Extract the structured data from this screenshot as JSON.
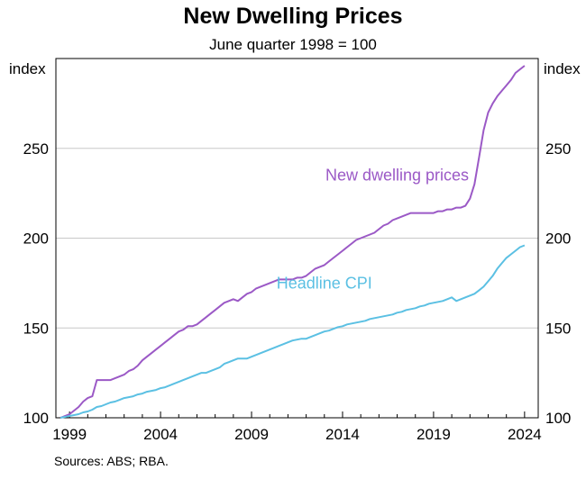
{
  "chart_data": {
    "type": "line",
    "title": "New Dwelling Prices",
    "subtitle": "June quarter 1998 = 100",
    "ylabel_left": "index",
    "ylabel_right": "index",
    "ylim": [
      100,
      300
    ],
    "y_ticks": [
      100,
      150,
      200,
      250
    ],
    "xlim": [
      1998.25,
      2024.75
    ],
    "x_ticks": [
      1999,
      2004,
      2009,
      2014,
      2019,
      2024
    ],
    "grid": true,
    "series": [
      {
        "name": "New dwelling prices",
        "color": "#9b59c6",
        "points": [
          [
            1998.5,
            100
          ],
          [
            1998.75,
            101
          ],
          [
            1999.0,
            102
          ],
          [
            1999.25,
            104
          ],
          [
            1999.5,
            106
          ],
          [
            1999.75,
            109
          ],
          [
            2000.0,
            111
          ],
          [
            2000.25,
            112
          ],
          [
            2000.5,
            121
          ],
          [
            2000.75,
            121
          ],
          [
            2001.0,
            121
          ],
          [
            2001.25,
            121
          ],
          [
            2001.5,
            122
          ],
          [
            2001.75,
            123
          ],
          [
            2002.0,
            124
          ],
          [
            2002.25,
            126
          ],
          [
            2002.5,
            127
          ],
          [
            2002.75,
            129
          ],
          [
            2003.0,
            132
          ],
          [
            2003.25,
            134
          ],
          [
            2003.5,
            136
          ],
          [
            2003.75,
            138
          ],
          [
            2004.0,
            140
          ],
          [
            2004.25,
            142
          ],
          [
            2004.5,
            144
          ],
          [
            2004.75,
            146
          ],
          [
            2005.0,
            148
          ],
          [
            2005.25,
            149
          ],
          [
            2005.5,
            151
          ],
          [
            2005.75,
            151
          ],
          [
            2006.0,
            152
          ],
          [
            2006.25,
            154
          ],
          [
            2006.5,
            156
          ],
          [
            2006.75,
            158
          ],
          [
            2007.0,
            160
          ],
          [
            2007.25,
            162
          ],
          [
            2007.5,
            164
          ],
          [
            2007.75,
            165
          ],
          [
            2008.0,
            166
          ],
          [
            2008.25,
            165
          ],
          [
            2008.5,
            167
          ],
          [
            2008.75,
            169
          ],
          [
            2009.0,
            170
          ],
          [
            2009.25,
            172
          ],
          [
            2009.5,
            173
          ],
          [
            2009.75,
            174
          ],
          [
            2010.0,
            175
          ],
          [
            2010.25,
            176
          ],
          [
            2010.5,
            177
          ],
          [
            2010.75,
            177
          ],
          [
            2011.0,
            177
          ],
          [
            2011.25,
            177
          ],
          [
            2011.5,
            178
          ],
          [
            2011.75,
            178
          ],
          [
            2012.0,
            179
          ],
          [
            2012.25,
            181
          ],
          [
            2012.5,
            183
          ],
          [
            2012.75,
            184
          ],
          [
            2013.0,
            185
          ],
          [
            2013.25,
            187
          ],
          [
            2013.5,
            189
          ],
          [
            2013.75,
            191
          ],
          [
            2014.0,
            193
          ],
          [
            2014.25,
            195
          ],
          [
            2014.5,
            197
          ],
          [
            2014.75,
            199
          ],
          [
            2015.0,
            200
          ],
          [
            2015.25,
            201
          ],
          [
            2015.5,
            202
          ],
          [
            2015.75,
            203
          ],
          [
            2016.0,
            205
          ],
          [
            2016.25,
            207
          ],
          [
            2016.5,
            208
          ],
          [
            2016.75,
            210
          ],
          [
            2017.0,
            211
          ],
          [
            2017.25,
            212
          ],
          [
            2017.5,
            213
          ],
          [
            2017.75,
            214
          ],
          [
            2018.0,
            214
          ],
          [
            2018.25,
            214
          ],
          [
            2018.5,
            214
          ],
          [
            2018.75,
            214
          ],
          [
            2019.0,
            214
          ],
          [
            2019.25,
            215
          ],
          [
            2019.5,
            215
          ],
          [
            2019.75,
            216
          ],
          [
            2020.0,
            216
          ],
          [
            2020.25,
            217
          ],
          [
            2020.5,
            217
          ],
          [
            2020.75,
            218
          ],
          [
            2021.0,
            222
          ],
          [
            2021.25,
            230
          ],
          [
            2021.5,
            245
          ],
          [
            2021.75,
            260
          ],
          [
            2022.0,
            270
          ],
          [
            2022.25,
            275
          ],
          [
            2022.5,
            279
          ],
          [
            2022.75,
            282
          ],
          [
            2023.0,
            285
          ],
          [
            2023.25,
            288
          ],
          [
            2023.5,
            292
          ],
          [
            2023.75,
            294
          ],
          [
            2024.0,
            296
          ]
        ]
      },
      {
        "name": "Headline CPI",
        "color": "#5bc0e3",
        "points": [
          [
            1998.5,
            100
          ],
          [
            1998.75,
            100.5
          ],
          [
            1999.0,
            101
          ],
          [
            1999.25,
            101.5
          ],
          [
            1999.5,
            102
          ],
          [
            1999.75,
            103
          ],
          [
            2000.0,
            103.5
          ],
          [
            2000.25,
            104.5
          ],
          [
            2000.5,
            106
          ],
          [
            2000.75,
            106.5
          ],
          [
            2001.0,
            107.5
          ],
          [
            2001.25,
            108.5
          ],
          [
            2001.5,
            109
          ],
          [
            2001.75,
            110
          ],
          [
            2002.0,
            111
          ],
          [
            2002.25,
            111.5
          ],
          [
            2002.5,
            112
          ],
          [
            2002.75,
            113
          ],
          [
            2003.0,
            113.5
          ],
          [
            2003.25,
            114.5
          ],
          [
            2003.5,
            115
          ],
          [
            2003.75,
            115.5
          ],
          [
            2004.0,
            116.5
          ],
          [
            2004.25,
            117
          ],
          [
            2004.5,
            118
          ],
          [
            2004.75,
            119
          ],
          [
            2005.0,
            120
          ],
          [
            2005.25,
            121
          ],
          [
            2005.5,
            122
          ],
          [
            2005.75,
            123
          ],
          [
            2006.0,
            124
          ],
          [
            2006.25,
            125
          ],
          [
            2006.5,
            125
          ],
          [
            2006.75,
            126
          ],
          [
            2007.0,
            127
          ],
          [
            2007.25,
            128
          ],
          [
            2007.5,
            130
          ],
          [
            2007.75,
            131
          ],
          [
            2008.0,
            132
          ],
          [
            2008.25,
            133
          ],
          [
            2008.5,
            133
          ],
          [
            2008.75,
            133
          ],
          [
            2009.0,
            134
          ],
          [
            2009.25,
            135
          ],
          [
            2009.5,
            136
          ],
          [
            2009.75,
            137
          ],
          [
            2010.0,
            138
          ],
          [
            2010.25,
            139
          ],
          [
            2010.5,
            140
          ],
          [
            2010.75,
            141
          ],
          [
            2011.0,
            142
          ],
          [
            2011.25,
            143
          ],
          [
            2011.5,
            143.5
          ],
          [
            2011.75,
            144
          ],
          [
            2012.0,
            144
          ],
          [
            2012.25,
            145
          ],
          [
            2012.5,
            146
          ],
          [
            2012.75,
            147
          ],
          [
            2013.0,
            148
          ],
          [
            2013.25,
            148.5
          ],
          [
            2013.5,
            149.5
          ],
          [
            2013.75,
            150.5
          ],
          [
            2014.0,
            151
          ],
          [
            2014.25,
            152
          ],
          [
            2014.5,
            152.5
          ],
          [
            2014.75,
            153
          ],
          [
            2015.0,
            153.5
          ],
          [
            2015.25,
            154
          ],
          [
            2015.5,
            155
          ],
          [
            2015.75,
            155.5
          ],
          [
            2016.0,
            156
          ],
          [
            2016.25,
            156.5
          ],
          [
            2016.5,
            157
          ],
          [
            2016.75,
            157.5
          ],
          [
            2017.0,
            158.5
          ],
          [
            2017.25,
            159
          ],
          [
            2017.5,
            160
          ],
          [
            2017.75,
            160.5
          ],
          [
            2018.0,
            161
          ],
          [
            2018.25,
            162
          ],
          [
            2018.5,
            162.5
          ],
          [
            2018.75,
            163.5
          ],
          [
            2019.0,
            164
          ],
          [
            2019.25,
            164.5
          ],
          [
            2019.5,
            165
          ],
          [
            2019.75,
            166
          ],
          [
            2020.0,
            167
          ],
          [
            2020.25,
            165
          ],
          [
            2020.5,
            166
          ],
          [
            2020.75,
            167
          ],
          [
            2021.0,
            168
          ],
          [
            2021.25,
            169
          ],
          [
            2021.5,
            171
          ],
          [
            2021.75,
            173
          ],
          [
            2022.0,
            176
          ],
          [
            2022.25,
            179
          ],
          [
            2022.5,
            183
          ],
          [
            2022.75,
            186
          ],
          [
            2023.0,
            189
          ],
          [
            2023.25,
            191
          ],
          [
            2023.5,
            193
          ],
          [
            2023.75,
            195
          ],
          [
            2024.0,
            196
          ]
        ]
      }
    ],
    "annotations": [
      {
        "text": "New dwelling prices",
        "color": "#9b59c6",
        "x": 2017.0,
        "y": 232
      },
      {
        "text": "Headline CPI",
        "color": "#5bc0e3",
        "x": 2013.0,
        "y": 172
      }
    ],
    "source": "Sources: ABS; RBA."
  }
}
